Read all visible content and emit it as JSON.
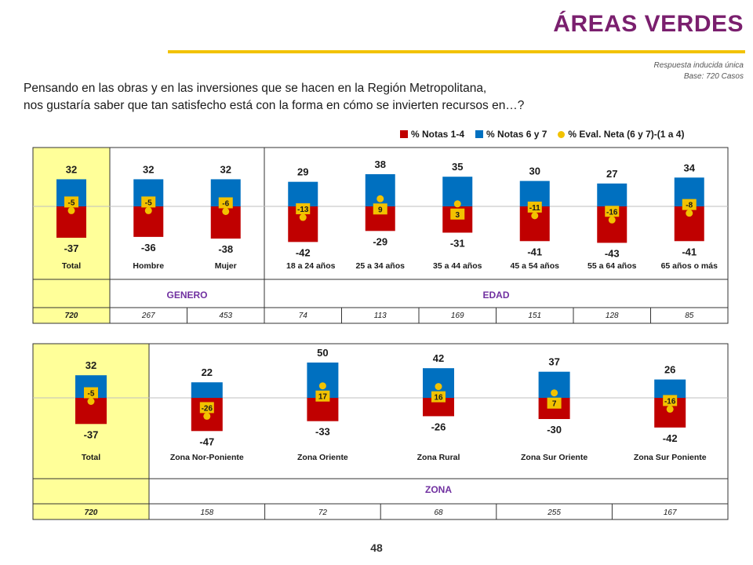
{
  "title": "ÁREAS VERDES",
  "notes": {
    "line1": "Respuesta inducida única",
    "line2": "Base: 720 Casos"
  },
  "question": {
    "line1": "Pensando en las obras y en las inversiones que se hacen en la Región Metropolitana,",
    "line2": "nos gustaría saber que tan satisfecho está con la forma en cómo se invierten recursos en…?"
  },
  "legend": {
    "neg": "% Notas 1-4",
    "pos": "% Notas 6 y 7",
    "net": "% Eval. Neta (6 y 7)-(1 a 4)"
  },
  "colors": {
    "neg": "#c00000",
    "pos": "#0070c0",
    "net": "#f2c200",
    "highlight": "#ffff99",
    "group": "#7030a0"
  },
  "page_number": "48",
  "chart_data": [
    {
      "type": "bar",
      "stacked": "diverging",
      "categories": [
        "Total",
        "Hombre",
        "Mujer",
        "18 a 24 años",
        "25 a 34 años",
        "35 a 44 años",
        "45 a 54 años",
        "55 a 64 años",
        "65 años o más"
      ],
      "series": [
        {
          "name": "% Notas 1-4",
          "values": [
            -37,
            -36,
            -38,
            -42,
            -29,
            -31,
            -41,
            -43,
            -41
          ]
        },
        {
          "name": "% Notas 6 y 7",
          "values": [
            32,
            32,
            32,
            29,
            38,
            35,
            30,
            27,
            34
          ]
        },
        {
          "name": "% Eval. Neta (6 y 7)-(1 a 4)",
          "values": [
            -5,
            -5,
            -6,
            -13,
            9,
            3,
            -11,
            -16,
            -8
          ]
        }
      ],
      "groups": [
        {
          "label": "GENERO",
          "span": [
            1,
            2
          ]
        },
        {
          "label": "EDAD",
          "span": [
            3,
            8
          ]
        }
      ],
      "bases": [
        "720",
        "267",
        "453",
        "74",
        "113",
        "169",
        "151",
        "128",
        "85"
      ]
    },
    {
      "type": "bar",
      "stacked": "diverging",
      "categories": [
        "Total",
        "Zona Nor-Poniente",
        "Zona Oriente",
        "Zona Rural",
        "Zona Sur Oriente",
        "Zona Sur Poniente"
      ],
      "series": [
        {
          "name": "% Notas 1-4",
          "values": [
            -37,
            -47,
            -33,
            -26,
            -30,
            -42
          ]
        },
        {
          "name": "% Notas 6 y 7",
          "values": [
            32,
            22,
            50,
            42,
            37,
            26
          ]
        },
        {
          "name": "% Eval. Neta (6 y 7)-(1 a 4)",
          "values": [
            -5,
            -26,
            17,
            16,
            7,
            -16
          ]
        }
      ],
      "groups": [
        {
          "label": "ZONA",
          "span": [
            1,
            5
          ]
        }
      ],
      "bases": [
        "720",
        "158",
        "72",
        "68",
        "255",
        "167"
      ]
    }
  ]
}
